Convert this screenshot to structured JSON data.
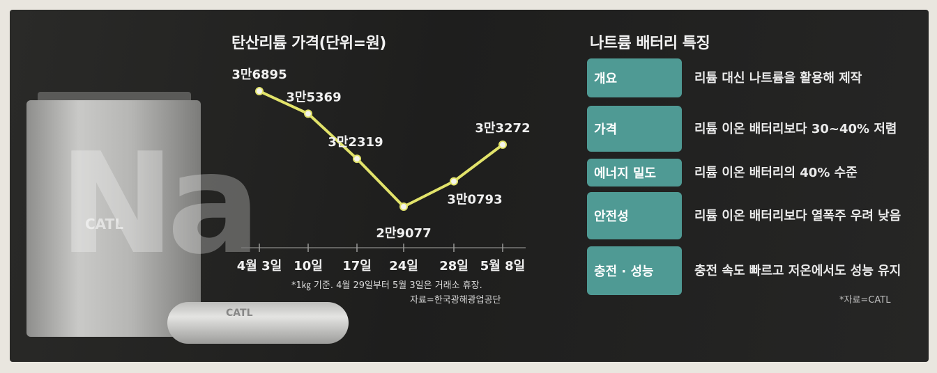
{
  "chart_data": {
    "type": "line",
    "title": "탄산리튬 가격(단위=원)",
    "categories": [
      "4월 3일",
      "10일",
      "17일",
      "24일",
      "28일",
      "5월 8일"
    ],
    "values": [
      36895,
      35369,
      32319,
      29077,
      30793,
      33272
    ],
    "data_labels": [
      "3만6895",
      "3만5369",
      "3만2319",
      "2만9077",
      "3만0793",
      "3만3272"
    ],
    "line_color": "#e2e36a",
    "grid": false
  },
  "footnote": {
    "line1": "*1㎏ 기준. 4월 29일부터 5월 3일은 거래소 휴장.",
    "line2": "자료=한국광해광업공단"
  },
  "battery": {
    "na": "Na",
    "brand": "CATL",
    "cylinder_brand": "CATL"
  },
  "features": {
    "title": "나트륨 배터리 특징",
    "accent": "#4f9a94",
    "rows": [
      {
        "label": "개요",
        "desc": "리튬 대신 나트륨을 활용해 제작"
      },
      {
        "label": "가격",
        "desc": "리튬 이온 배터리보다 30~40% 저렴"
      },
      {
        "label": "에너지 밀도",
        "desc": "리튬 이온 배터리의 40% 수준"
      },
      {
        "label": "안전성",
        "desc": "리튬 이온 배터리보다 열폭주 우려 낮음"
      },
      {
        "label": "충전 · 성능",
        "desc": "충전 속도 빠르고 저온에서도 성능 유지"
      }
    ],
    "source": "*자료=CATL"
  }
}
